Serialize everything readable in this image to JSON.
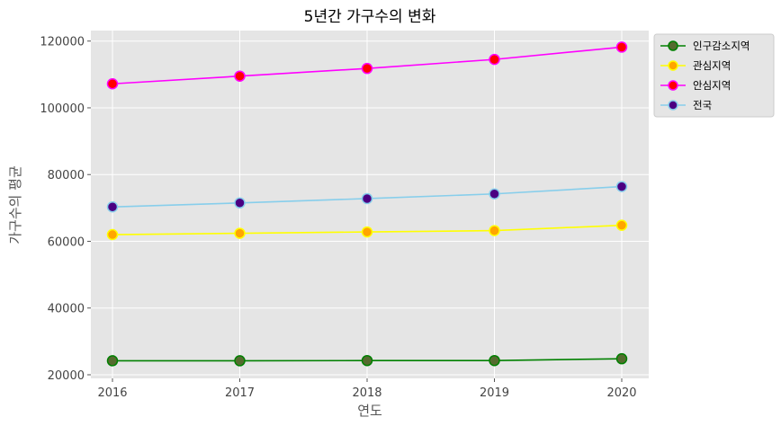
{
  "chart_data": {
    "type": "line",
    "title": "5년간 가구수의 변화",
    "xlabel": "연도",
    "ylabel": "가구수의 평균",
    "x": [
      2016,
      2017,
      2018,
      2019,
      2020
    ],
    "xticks": [
      "2016",
      "2017",
      "2018",
      "2019",
      "2020"
    ],
    "yticks": [
      "20000",
      "40000",
      "60000",
      "80000",
      "100000",
      "120000"
    ],
    "ylim": [
      20000,
      121000
    ],
    "grid": true,
    "legend_position": "outside-top-right",
    "series": [
      {
        "name": "인구감소지역",
        "values": [
          24200,
          24200,
          24250,
          24250,
          24800
        ],
        "line_color": "#008000",
        "marker_color": "#556B2F",
        "marker_edge": "#008000"
      },
      {
        "name": "관심지역",
        "values": [
          62000,
          62400,
          62800,
          63200,
          64800
        ],
        "line_color": "#FFFF00",
        "marker_color": "#FFA500",
        "marker_edge": "#FFFF00"
      },
      {
        "name": "안심지역",
        "values": [
          107200,
          109500,
          111800,
          114500,
          118200
        ],
        "line_color": "#FF00FF",
        "marker_color": "#FF0000",
        "marker_edge": "#FF00FF"
      },
      {
        "name": "전국",
        "values": [
          70300,
          71500,
          72800,
          74200,
          76400
        ],
        "line_color": "#87CEEB",
        "marker_color": "#4B0082",
        "marker_edge": "#87CEEB"
      }
    ]
  }
}
